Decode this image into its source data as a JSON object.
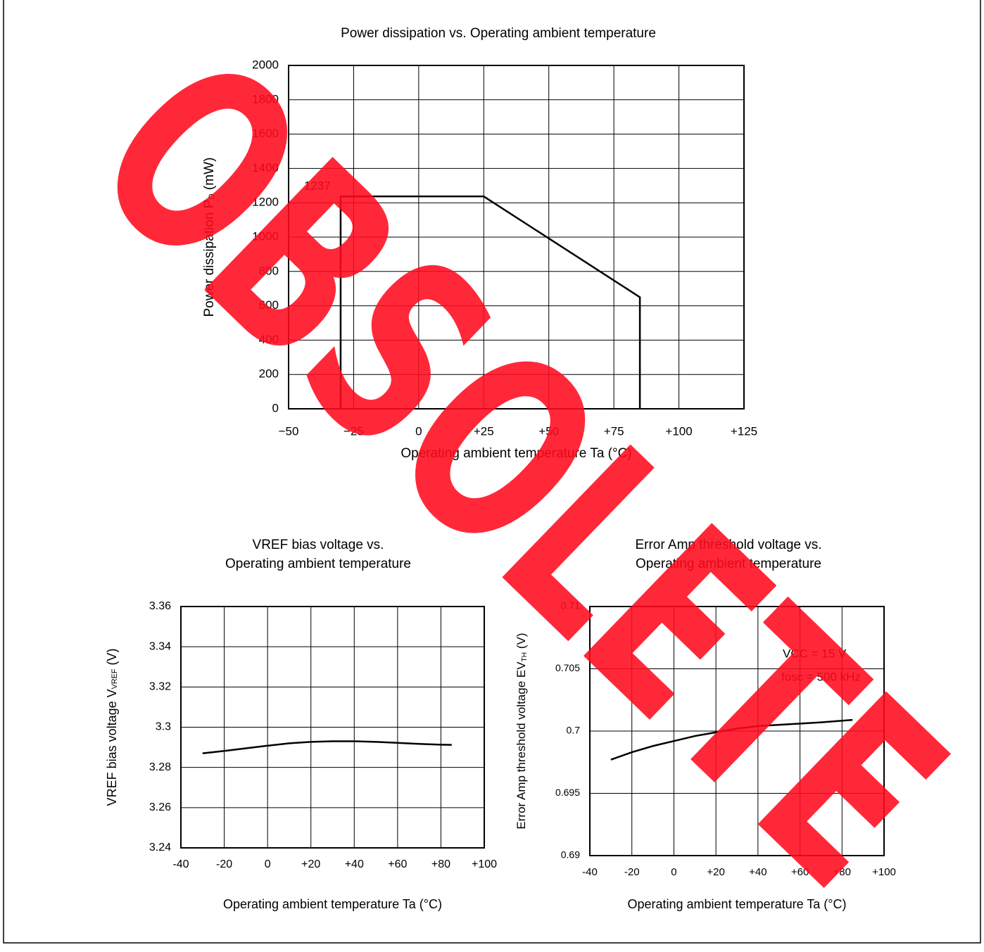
{
  "watermark": "OBSOLETE",
  "chart_data": [
    {
      "type": "line",
      "title": [
        "Power dissipation vs. Operating ambient temperature"
      ],
      "xlabel": "Operating ambient temperature Ta (°C)",
      "ylabel": [
        "Power dissipation P",
        "D",
        " (mW)"
      ],
      "x": [
        -30,
        -30,
        25,
        85,
        85
      ],
      "series": [
        {
          "color": "#000000",
          "values": [
            0,
            1237,
            1237,
            650,
            0
          ]
        }
      ],
      "xlim": [
        -50,
        125
      ],
      "xticks": [
        {
          "value": -50,
          "label": "−50"
        },
        {
          "value": -25,
          "label": "−25"
        },
        0,
        {
          "value": 25,
          "label": "+25"
        },
        {
          "value": 50,
          "label": "+50"
        },
        {
          "value": 75,
          "label": "+75"
        },
        {
          "value": 100,
          "label": "+100"
        },
        {
          "value": 125,
          "label": "+125"
        }
      ],
      "ylim": [
        0,
        2000
      ],
      "yticks": [
        0,
        200,
        400,
        600,
        800,
        1000,
        1200,
        1400,
        1600,
        1800,
        2000
      ],
      "grid": true
    },
    {
      "type": "line",
      "title": [
        "VREF bias voltage vs.",
        "Operating ambient temperature"
      ],
      "xlabel": "Operating ambient temperature Ta (°C)",
      "ylabel": [
        "VREF bias voltage V",
        "VREF",
        " (V)"
      ],
      "x": [
        -30,
        -20,
        -10,
        0,
        10,
        20,
        30,
        40,
        50,
        60,
        70,
        80,
        85
      ],
      "series": [
        {
          "color": "#000000",
          "values": [
            3.287,
            3.2882,
            3.2895,
            3.2908,
            3.292,
            3.2927,
            3.293,
            3.293,
            3.2927,
            3.2922,
            3.2917,
            3.2913,
            3.2912
          ]
        }
      ],
      "xlim": [
        -40,
        100
      ],
      "xticks": [
        -40,
        -20,
        0,
        {
          "value": 20,
          "label": "+20"
        },
        {
          "value": 40,
          "label": "+40"
        },
        {
          "value": 60,
          "label": "+60"
        },
        {
          "value": 80,
          "label": "+80"
        },
        {
          "value": 100,
          "label": "+100"
        }
      ],
      "ylim": [
        3.24,
        3.36
      ],
      "yticks": [
        3.24,
        3.26,
        3.28,
        3.3,
        3.32,
        3.34,
        3.36
      ],
      "grid": true
    },
    {
      "type": "line",
      "title": [
        "Error Amp threshold voltage vs.",
        "Operating ambient temperature"
      ],
      "xlabel": "Operating ambient temperature Ta (°C)",
      "ylabel": [
        "Error Amp threshold voltage EV",
        "TH",
        " (V)"
      ],
      "annotations": [
        "VCC = 15 V",
        "fosc = 500 kHz"
      ],
      "x": [
        -30,
        -20,
        -10,
        0,
        10,
        20,
        30,
        40,
        50,
        60,
        70,
        85
      ],
      "series": [
        {
          "color": "#000000",
          "values": [
            0.6977,
            0.6983,
            0.6988,
            0.6992,
            0.6996,
            0.6999,
            0.7002,
            0.7004,
            0.7005,
            0.7006,
            0.7007,
            0.7009
          ]
        }
      ],
      "xlim": [
        -40,
        100
      ],
      "xticks": [
        -40,
        -20,
        0,
        {
          "value": 20,
          "label": "+20"
        },
        {
          "value": 40,
          "label": "+40"
        },
        {
          "value": 60,
          "label": "+60"
        },
        {
          "value": 80,
          "label": "+80"
        },
        {
          "value": 100,
          "label": "+100"
        }
      ],
      "ylim": [
        0.69,
        0.71
      ],
      "yticks": [
        0.69,
        0.695,
        0.7,
        0.705,
        0.71
      ],
      "grid": true
    }
  ]
}
